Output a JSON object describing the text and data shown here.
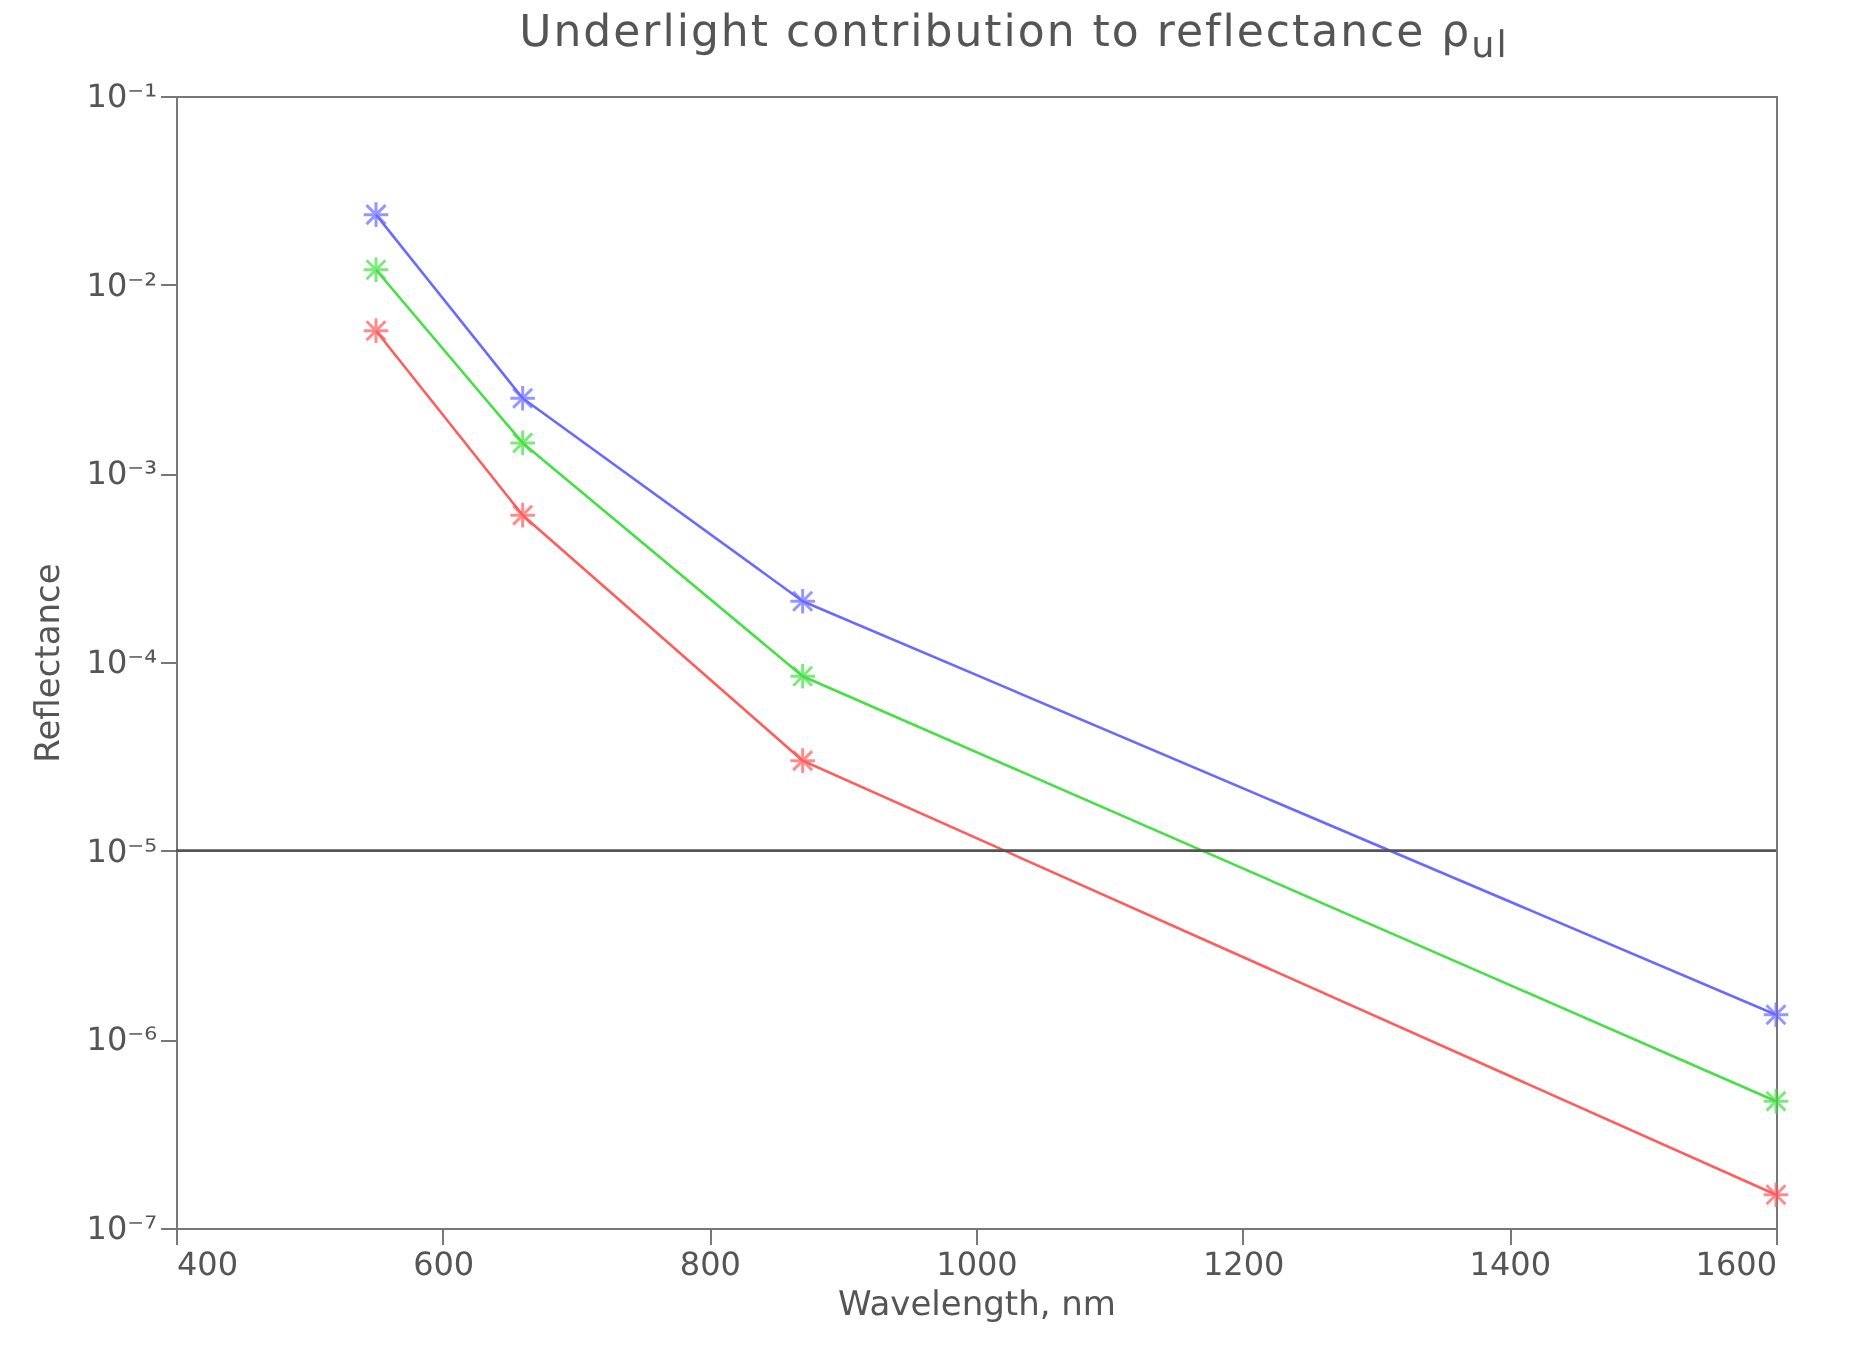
{
  "chart_data": {
    "type": "line",
    "title": "Underlight contribution to reflectance ρ$_{ul}$",
    "xlabel": "Wavelength, nm",
    "ylabel": "Reflectance",
    "x": [
      550,
      660,
      870,
      1600
    ],
    "series": [
      {
        "color": "#6a6aff",
        "values": [
          0.0235,
          0.0025,
          0.00021,
          1.35e-06
        ]
      },
      {
        "color": "#44e044",
        "values": [
          0.012,
          0.00145,
          8.4e-05,
          4.7e-07
        ]
      },
      {
        "color": "#ff5c5c",
        "values": [
          0.0057,
          0.0006,
          3e-05,
          1.5e-07
        ]
      }
    ],
    "log": "y",
    "marker": "cross",
    "line_style": "solid",
    "grid": false,
    "legend": false,
    "xlim": [
      400,
      1600
    ],
    "xticks": [
      400,
      600,
      800,
      1000,
      1200,
      1400,
      1600
    ],
    "ylim": [
      1e-07,
      0.1
    ],
    "yticks": [
      {
        "value": 1e-07,
        "label": "10⁻⁷"
      },
      {
        "value": 1e-06,
        "label": "10⁻⁶"
      },
      {
        "value": 1e-05,
        "label": "10⁻⁵"
      },
      {
        "value": 0.0001,
        "label": "10⁻⁴"
      },
      {
        "value": 0.001,
        "label": "10⁻³"
      },
      {
        "value": 0.01,
        "label": "10⁻²"
      },
      {
        "value": 0.1,
        "label": "10⁻¹"
      }
    ],
    "ref_lines": [
      {
        "axis": "y",
        "value": 1e-05,
        "color": "#555555"
      }
    ]
  }
}
